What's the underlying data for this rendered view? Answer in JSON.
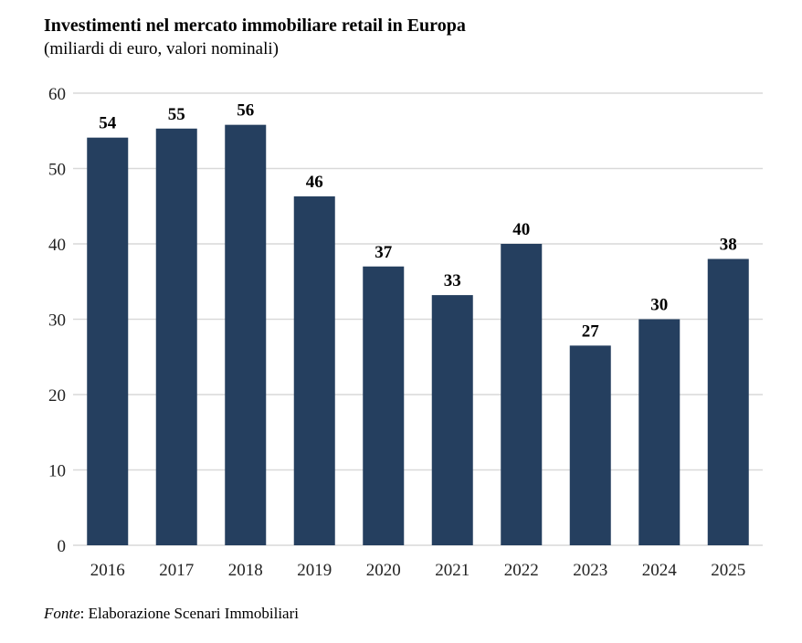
{
  "chart_data": {
    "type": "bar",
    "title": "Investimenti nel mercato immobiliare retail in Europa",
    "subtitle": "(miliardi di euro, valori nominali)",
    "categories": [
      "2016",
      "2017",
      "2018",
      "2019",
      "2020",
      "2021",
      "2022",
      "2023",
      "2024",
      "2025"
    ],
    "values": [
      54.1,
      55.3,
      55.8,
      46.3,
      37.0,
      33.2,
      40.0,
      26.5,
      30.0,
      38.0
    ],
    "data_labels": [
      "54",
      "55",
      "56",
      "46",
      "37",
      "33",
      "40",
      "27",
      "30",
      "38"
    ],
    "xlabel": "",
    "ylabel": "",
    "ylim": [
      0,
      60
    ],
    "yticks": [
      0,
      10,
      20,
      30,
      40,
      50,
      60
    ],
    "grid": true,
    "bar_color": "#253f5f",
    "grid_color": "#d9d9d9"
  },
  "source": {
    "label": "Fonte",
    "text": ": Elaborazione Scenari Immobiliari"
  }
}
